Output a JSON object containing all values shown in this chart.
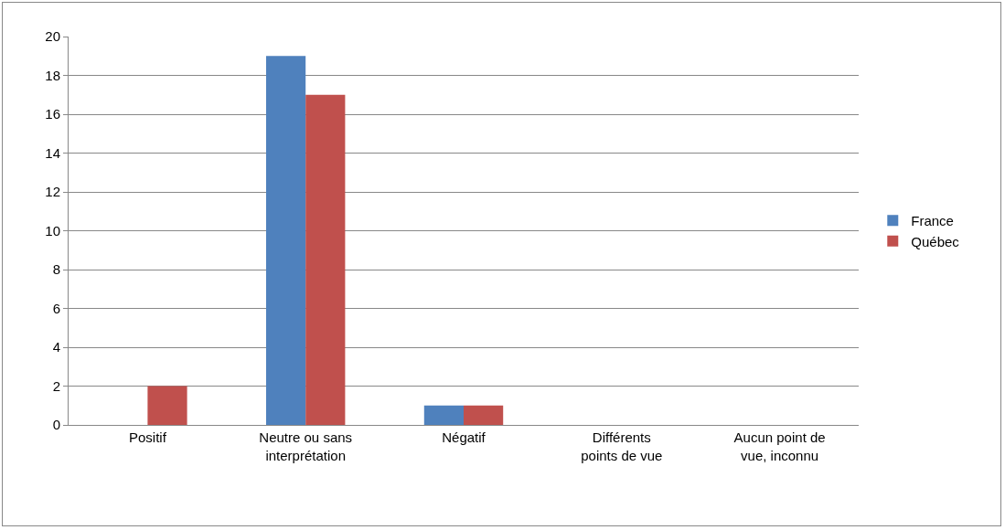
{
  "chart_data": {
    "type": "bar",
    "categories": [
      "Positif",
      "Neutre ou sans interprétation",
      "Négatif",
      "Différents points de vue",
      "Aucun point de vue, inconnu"
    ],
    "series": [
      {
        "name": "France",
        "color": "#4f81bd",
        "values": [
          0,
          19,
          1,
          0,
          0
        ]
      },
      {
        "name": "Québec",
        "color": "#c0504d",
        "values": [
          2,
          17,
          1,
          0,
          0
        ]
      }
    ],
    "ylim": [
      0,
      20
    ],
    "yticks": [
      0,
      2,
      4,
      6,
      8,
      10,
      12,
      14,
      16,
      18,
      20
    ],
    "grid": "y",
    "legend": "right"
  }
}
